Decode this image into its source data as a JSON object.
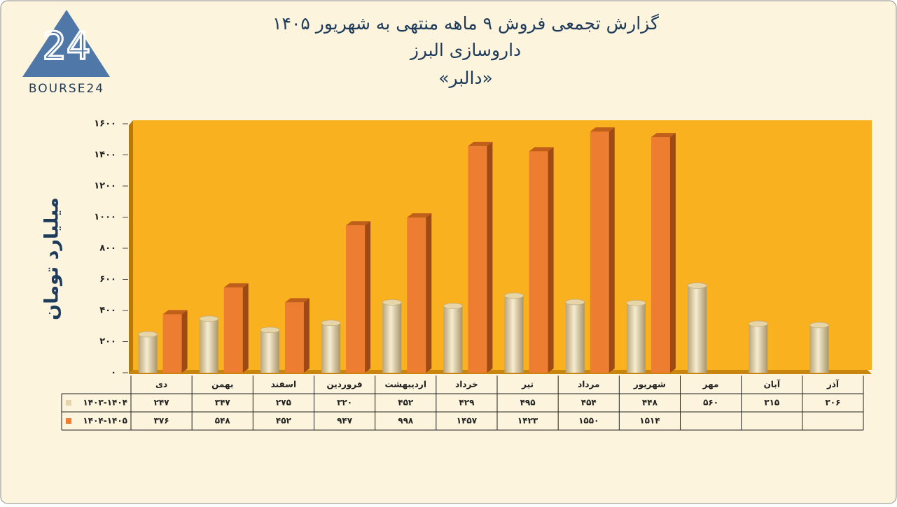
{
  "logo": {
    "mark": "24",
    "text": "BOURSE24"
  },
  "chart_data": {
    "type": "bar",
    "title": "گزارش تجمعی فروش ۹ ماهه منتهی به شهریور ۱۴۰۵",
    "subtitle": "داروسازی البرز",
    "subtitle2": "«دالبر»",
    "y_label": "میلیارد تومان",
    "categories": [
      "دی",
      "بهمن",
      "اسفند",
      "فروردین",
      "اردیبهشت",
      "خرداد",
      "تیر",
      "مرداد",
      "شهریور",
      "مهر",
      "آبان",
      "آذر"
    ],
    "series": [
      {
        "name": "۱۴۰۳-۱۴۰۴",
        "color": "#e6d5a8",
        "values": [
          247,
          347,
          275,
          320,
          452,
          429,
          495,
          454,
          448,
          560,
          315,
          306
        ],
        "value_labels": [
          "۲۴۷",
          "۳۴۷",
          "۲۷۵",
          "۳۲۰",
          "۴۵۲",
          "۴۲۹",
          "۴۹۵",
          "۴۵۴",
          "۴۴۸",
          "۵۶۰",
          "۳۱۵",
          "۳۰۶"
        ]
      },
      {
        "name": "۱۴۰۴-۱۴۰۵",
        "color": "#ed7d31",
        "values": [
          376,
          548,
          452,
          947,
          998,
          1457,
          1423,
          1550,
          1514,
          null,
          null,
          null
        ],
        "value_labels": [
          "۳۷۶",
          "۵۴۸",
          "۴۵۲",
          "۹۴۷",
          "۹۹۸",
          "۱۴۵۷",
          "۱۴۲۳",
          "۱۵۵۰",
          "۱۵۱۴",
          null,
          null,
          null
        ]
      }
    ],
    "ylim": [
      0,
      1600
    ],
    "yticks": [
      {
        "value": 0,
        "label": "۰"
      },
      {
        "value": 200,
        "label": "۲۰۰"
      },
      {
        "value": 400,
        "label": "۴۰۰"
      },
      {
        "value": 600,
        "label": "۶۰۰"
      },
      {
        "value": 800,
        "label": "۸۰۰"
      },
      {
        "value": 1000,
        "label": "۱۰۰۰"
      },
      {
        "value": 1200,
        "label": "۱۲۰۰"
      },
      {
        "value": 1400,
        "label": "۱۴۰۰"
      },
      {
        "value": 1600,
        "label": "۱۶۰۰"
      }
    ],
    "plot_color": "#f9b11f"
  }
}
